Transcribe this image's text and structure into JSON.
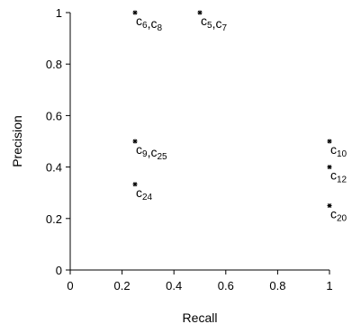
{
  "chart_data": {
    "type": "scatter",
    "title": "",
    "xlabel": "Recall",
    "ylabel": "Precision",
    "xlim": [
      0,
      1
    ],
    "ylim": [
      0,
      1
    ],
    "grid": false,
    "legend": "none",
    "x_ticks": [
      "0",
      "0.2",
      "0.4",
      "0.6",
      "0.8",
      "1"
    ],
    "x_tick_values": [
      0,
      0.2,
      0.4,
      0.6,
      0.8,
      1
    ],
    "y_ticks": [
      "0",
      "0.2",
      "0.4",
      "0.6",
      "0.8",
      "1"
    ],
    "y_tick_values": [
      0,
      0.2,
      0.4,
      0.6,
      0.8,
      1
    ],
    "points": [
      {
        "x": 0.25,
        "y": 1.0,
        "label": [
          {
            "t": "c",
            "s": "6"
          },
          {
            "t": ",c",
            "s": "8"
          }
        ]
      },
      {
        "x": 0.5,
        "y": 1.0,
        "label": [
          {
            "t": "c",
            "s": "5"
          },
          {
            "t": ",c",
            "s": "7"
          }
        ]
      },
      {
        "x": 0.25,
        "y": 0.5,
        "label": [
          {
            "t": "c",
            "s": "9"
          },
          {
            "t": ",c",
            "s": "25"
          }
        ]
      },
      {
        "x": 0.25,
        "y": 0.333,
        "label": [
          {
            "t": "c",
            "s": "24"
          }
        ]
      },
      {
        "x": 1.0,
        "y": 0.5,
        "label": [
          {
            "t": "c",
            "s": "10"
          }
        ]
      },
      {
        "x": 1.0,
        "y": 0.4,
        "label": [
          {
            "t": "c",
            "s": "12"
          }
        ]
      },
      {
        "x": 1.0,
        "y": 0.25,
        "label": [
          {
            "t": "c",
            "s": "20"
          }
        ]
      }
    ]
  }
}
